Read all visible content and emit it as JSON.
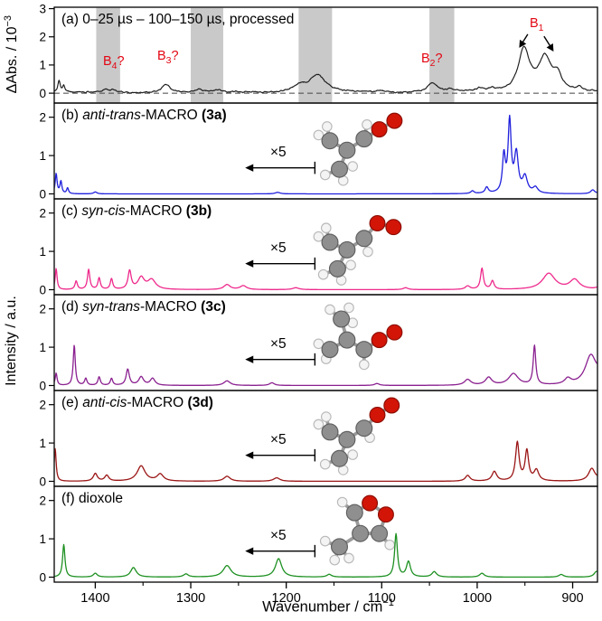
{
  "figure": {
    "xlabel_main": "Wavenumber / cm",
    "xlabel_sup": "−1",
    "ylabel_a_main": "ΔAbs. / 10",
    "ylabel_a_sup": "−3",
    "ylabel_bf": "Intensity / a.u.",
    "x5_label": "×5"
  },
  "titles": {
    "a": {
      "pre": "(a) 0–25 µs – 100–150 µs, processed",
      "it": "",
      "mid": "",
      "bold": ""
    },
    "b": {
      "pre": "(b) ",
      "it": "anti-trans",
      "mid": "-MACRO ",
      "bold": "(3a)"
    },
    "c": {
      "pre": "(c) ",
      "it": "syn-cis",
      "mid": "-MACRO ",
      "bold": "(3b)"
    },
    "d": {
      "pre": "(d) ",
      "it": "syn-trans",
      "mid": "-MACRO ",
      "bold": "(3c)"
    },
    "e": {
      "pre": "(e) ",
      "it": "anti-cis",
      "mid": "-MACRO ",
      "bold": "(3d)"
    },
    "f": {
      "pre": "(f) ",
      "it": "",
      "mid": "dioxole",
      "bold": ""
    }
  },
  "annotations_a": {
    "b4": {
      "base": "B",
      "sub": "4",
      "suffix": "?"
    },
    "b3": {
      "base": "B",
      "sub": "3",
      "suffix": "?"
    },
    "b2": {
      "base": "B",
      "sub": "2",
      "suffix": "?"
    },
    "b1": {
      "base": "B",
      "sub": "1",
      "suffix": ""
    }
  },
  "chart_data": {
    "type": "line",
    "x_axis": {
      "range": [
        1443,
        874
      ],
      "reversed": true,
      "major_ticks": [
        1400,
        1300,
        1200,
        1100,
        1000,
        900
      ],
      "minor_ticks": [
        1350,
        1250,
        1150,
        1050,
        950
      ]
    },
    "panels": [
      {
        "id": "a",
        "color": "#1a1a1a",
        "lw": 1.15,
        "ylim": [
          -0.35,
          3.05
        ],
        "yticks": [
          0,
          1,
          2,
          3
        ],
        "noise": 0.045,
        "dashed_zero": true,
        "gray_bands": [
          [
            1399,
            1374
          ],
          [
            1300,
            1266
          ],
          [
            1187,
            1152
          ],
          [
            1050,
            1024
          ]
        ],
        "peaks": [
          [
            1438,
            0.42,
            1.6
          ],
          [
            1433,
            0.25,
            1.4
          ],
          [
            1389,
            0.1,
            3
          ],
          [
            1382,
            0.09,
            3
          ],
          [
            1326,
            0.3,
            5
          ],
          [
            1291,
            0.09,
            5
          ],
          [
            1271,
            0.07,
            5
          ],
          [
            1186,
            0.22,
            9
          ],
          [
            1167,
            0.6,
            10
          ],
          [
            1100,
            0.05,
            7
          ],
          [
            1047,
            0.33,
            6
          ],
          [
            1028,
            0.1,
            4
          ],
          [
            997,
            0.12,
            4
          ],
          [
            985,
            0.1,
            3
          ],
          [
            951,
            1.5,
            7
          ],
          [
            929,
            1.2,
            8
          ],
          [
            916,
            0.5,
            5
          ],
          [
            893,
            0.12,
            4
          ]
        ],
        "arrows": [
          [
            947,
            2.09,
            956,
            1.61
          ],
          [
            930,
            2.02,
            920,
            1.48
          ]
        ]
      },
      {
        "id": "b",
        "color": "#2020dd",
        "ylim": [
          -0.13,
          2.37
        ],
        "yticks": [
          0,
          1,
          2
        ],
        "x5": {
          "tip_wn": 1243,
          "bar_wn": 1170,
          "y": 0.68,
          "bar_half": 0.16
        },
        "molecule": "macro_3a",
        "peaks": [
          [
            1441,
            0.52,
            1.2
          ],
          [
            1436,
            0.32,
            1.2
          ],
          [
            1429,
            0.15,
            1.2
          ],
          [
            1400,
            0.05,
            2
          ],
          [
            1209,
            0.04,
            3
          ],
          [
            1005,
            0.07,
            2
          ],
          [
            990,
            0.16,
            2
          ],
          [
            972,
            0.95,
            1.8
          ],
          [
            966,
            1.85,
            1.9
          ],
          [
            959,
            1.0,
            2.4
          ],
          [
            950,
            0.42,
            3
          ],
          [
            939,
            0.15,
            3
          ],
          [
            879,
            0.1,
            2.5
          ],
          [
            868,
            0.08,
            2.5
          ]
        ]
      },
      {
        "id": "c",
        "color": "#ee2a8c",
        "ylim": [
          -0.13,
          2.37
        ],
        "yticks": [
          0,
          1,
          2
        ],
        "x5": {
          "tip_wn": 1243,
          "bar_wn": 1170,
          "y": 0.68,
          "bar_half": 0.16
        },
        "molecule": "macro_3b",
        "peaks": [
          [
            1441,
            0.55,
            1.2
          ],
          [
            1420,
            0.22,
            1.5
          ],
          [
            1407,
            0.52,
            1.5
          ],
          [
            1396,
            0.3,
            1.5
          ],
          [
            1383,
            0.28,
            1.5
          ],
          [
            1364,
            0.48,
            2
          ],
          [
            1352,
            0.3,
            4
          ],
          [
            1341,
            0.25,
            5
          ],
          [
            1262,
            0.13,
            4
          ],
          [
            1245,
            0.1,
            4
          ],
          [
            1190,
            0.05,
            4
          ],
          [
            1075,
            0.05,
            3
          ],
          [
            1010,
            0.09,
            3
          ],
          [
            995,
            0.55,
            1.8
          ],
          [
            984,
            0.22,
            2
          ],
          [
            925,
            0.42,
            8
          ],
          [
            898,
            0.25,
            6
          ],
          [
            870,
            0.1,
            4
          ]
        ]
      },
      {
        "id": "d",
        "color": "#8a2090",
        "ylim": [
          -0.13,
          2.37
        ],
        "yticks": [
          0,
          1,
          2
        ],
        "x5": {
          "tip_wn": 1243,
          "bar_wn": 1170,
          "y": 0.68,
          "bar_half": 0.16
        },
        "molecule": "macro_3c",
        "peaks": [
          [
            1441,
            0.32,
            1.2
          ],
          [
            1422,
            1.05,
            1.3
          ],
          [
            1410,
            0.18,
            1.5
          ],
          [
            1396,
            0.22,
            1.5
          ],
          [
            1383,
            0.18,
            1.5
          ],
          [
            1366,
            0.42,
            2
          ],
          [
            1352,
            0.22,
            3
          ],
          [
            1340,
            0.18,
            3
          ],
          [
            1262,
            0.12,
            4
          ],
          [
            1215,
            0.07,
            3
          ],
          [
            1105,
            0.05,
            3
          ],
          [
            1010,
            0.15,
            4
          ],
          [
            988,
            0.2,
            4
          ],
          [
            962,
            0.3,
            6
          ],
          [
            940,
            1.02,
            1.6
          ],
          [
            905,
            0.15,
            4
          ],
          [
            881,
            0.75,
            7
          ],
          [
            868,
            0.45,
            5
          ]
        ]
      },
      {
        "id": "e",
        "color": "#9b1515",
        "ylim": [
          -0.13,
          2.37
        ],
        "yticks": [
          0,
          1,
          2
        ],
        "x5": {
          "tip_wn": 1243,
          "bar_wn": 1170,
          "y": 0.68,
          "bar_half": 0.16
        },
        "molecule": "macro_3d",
        "peaks": [
          [
            1442,
            0.85,
            1.2
          ],
          [
            1400,
            0.2,
            2.5
          ],
          [
            1388,
            0.15,
            2.5
          ],
          [
            1352,
            0.4,
            5
          ],
          [
            1332,
            0.18,
            4
          ],
          [
            1262,
            0.13,
            4
          ],
          [
            1210,
            0.09,
            4
          ],
          [
            1010,
            0.15,
            3
          ],
          [
            982,
            0.25,
            3
          ],
          [
            958,
            1.0,
            2.2
          ],
          [
            948,
            0.78,
            2.2
          ],
          [
            938,
            0.28,
            3
          ],
          [
            880,
            0.32,
            4
          ],
          [
            866,
            0.26,
            4
          ]
        ]
      },
      {
        "id": "f",
        "color": "#1d9021",
        "ylim": [
          -0.13,
          2.37
        ],
        "yticks": [
          0,
          1,
          2
        ],
        "x5": {
          "tip_wn": 1243,
          "bar_wn": 1170,
          "y": 0.68,
          "bar_half": 0.16
        },
        "molecule": "dioxole",
        "peaks": [
          [
            1433,
            0.85,
            1.5
          ],
          [
            1400,
            0.1,
            2.5
          ],
          [
            1360,
            0.25,
            3.5
          ],
          [
            1305,
            0.08,
            3
          ],
          [
            1262,
            0.3,
            5
          ],
          [
            1208,
            0.48,
            4
          ],
          [
            1155,
            0.07,
            3
          ],
          [
            1085,
            1.12,
            1.8
          ],
          [
            1072,
            0.4,
            2.5
          ],
          [
            1045,
            0.14,
            3
          ],
          [
            995,
            0.1,
            3
          ],
          [
            912,
            0.07,
            3
          ],
          [
            875,
            0.15,
            3
          ]
        ]
      }
    ],
    "atom_style": {
      "C": {
        "r": 8.5,
        "fill": "#8f8f8f",
        "stroke": "#5f5f5f"
      },
      "H": {
        "r": 5.0,
        "fill": "#f4f4f4",
        "stroke": "#b9b9b9"
      },
      "O": {
        "r": 8.0,
        "fill": "#d21507",
        "stroke": "#8c0e03"
      }
    },
    "molecules": {
      "macro_3a": {
        "atoms": [
          [
            20,
            34,
            "C"
          ],
          [
            38,
            44,
            "C"
          ],
          [
            30,
            64,
            "C"
          ],
          [
            56,
            32,
            "C"
          ],
          [
            72,
            22,
            "O"
          ],
          [
            88,
            13,
            "O"
          ],
          [
            8,
            28,
            "H"
          ],
          [
            17,
            19,
            "H"
          ],
          [
            15,
            70,
            "H"
          ],
          [
            34,
            76,
            "H"
          ],
          [
            44,
            61,
            "H"
          ],
          [
            59,
            17,
            "H"
          ]
        ],
        "bonds": [
          [
            0,
            1
          ],
          [
            1,
            2
          ],
          [
            1,
            3
          ],
          [
            3,
            4
          ],
          [
            4,
            5
          ],
          [
            0,
            6
          ],
          [
            0,
            7
          ],
          [
            2,
            8
          ],
          [
            2,
            9
          ],
          [
            2,
            10
          ],
          [
            3,
            11
          ]
        ]
      },
      "macro_3b": {
        "atoms": [
          [
            20,
            40,
            "C"
          ],
          [
            38,
            48,
            "C"
          ],
          [
            28,
            68,
            "C"
          ],
          [
            56,
            36,
            "C"
          ],
          [
            70,
            20,
            "O"
          ],
          [
            87,
            24,
            "O"
          ],
          [
            8,
            34,
            "H"
          ],
          [
            16,
            25,
            "H"
          ],
          [
            13,
            74,
            "H"
          ],
          [
            32,
            80,
            "H"
          ],
          [
            42,
            64,
            "H"
          ],
          [
            60,
            50,
            "H"
          ]
        ],
        "bonds": [
          [
            0,
            1
          ],
          [
            1,
            2
          ],
          [
            1,
            3
          ],
          [
            3,
            4
          ],
          [
            4,
            5
          ],
          [
            0,
            6
          ],
          [
            0,
            7
          ],
          [
            2,
            8
          ],
          [
            2,
            9
          ],
          [
            2,
            10
          ],
          [
            3,
            11
          ]
        ]
      },
      "macro_3c": {
        "atoms": [
          [
            20,
            52,
            "C"
          ],
          [
            38,
            42,
            "C"
          ],
          [
            32,
            20,
            "C"
          ],
          [
            56,
            52,
            "C"
          ],
          [
            72,
            42,
            "O"
          ],
          [
            88,
            34,
            "O"
          ],
          [
            8,
            46,
            "H"
          ],
          [
            16,
            62,
            "H"
          ],
          [
            20,
            10,
            "H"
          ],
          [
            40,
            8,
            "H"
          ],
          [
            44,
            24,
            "H"
          ],
          [
            56,
            68,
            "H"
          ]
        ],
        "bonds": [
          [
            0,
            1
          ],
          [
            1,
            2
          ],
          [
            1,
            3
          ],
          [
            3,
            4
          ],
          [
            4,
            5
          ],
          [
            0,
            6
          ],
          [
            0,
            7
          ],
          [
            2,
            8
          ],
          [
            2,
            9
          ],
          [
            2,
            10
          ],
          [
            3,
            11
          ]
        ]
      },
      "macro_3d": {
        "atoms": [
          [
            20,
            38,
            "C"
          ],
          [
            38,
            46,
            "C"
          ],
          [
            30,
            66,
            "C"
          ],
          [
            56,
            34,
            "C"
          ],
          [
            70,
            20,
            "O"
          ],
          [
            85,
            10,
            "O"
          ],
          [
            8,
            30,
            "H"
          ],
          [
            16,
            22,
            "H"
          ],
          [
            15,
            72,
            "H"
          ],
          [
            34,
            78,
            "H"
          ],
          [
            44,
            62,
            "H"
          ],
          [
            62,
            44,
            "H"
          ]
        ],
        "bonds": [
          [
            0,
            1
          ],
          [
            1,
            2
          ],
          [
            1,
            3
          ],
          [
            3,
            4
          ],
          [
            4,
            5
          ],
          [
            0,
            6
          ],
          [
            0,
            7
          ],
          [
            2,
            8
          ],
          [
            2,
            9
          ],
          [
            2,
            10
          ],
          [
            3,
            11
          ]
        ]
      },
      "dioxole": {
        "atoms": [
          [
            62,
            12,
            "O"
          ],
          [
            79,
            24,
            "O"
          ],
          [
            72,
            44,
            "C"
          ],
          [
            52,
            44,
            "C"
          ],
          [
            46,
            22,
            "C"
          ],
          [
            30,
            58,
            "C"
          ],
          [
            83,
            56,
            "H"
          ],
          [
            33,
            11,
            "H"
          ],
          [
            15,
            52,
            "H"
          ],
          [
            25,
            72,
            "H"
          ],
          [
            40,
            70,
            "H"
          ]
        ],
        "bonds": [
          [
            0,
            1
          ],
          [
            1,
            2
          ],
          [
            2,
            3
          ],
          [
            3,
            4
          ],
          [
            4,
            0
          ],
          [
            3,
            5
          ],
          [
            2,
            6
          ],
          [
            4,
            7
          ],
          [
            5,
            8
          ],
          [
            5,
            9
          ],
          [
            5,
            10
          ]
        ]
      }
    }
  }
}
